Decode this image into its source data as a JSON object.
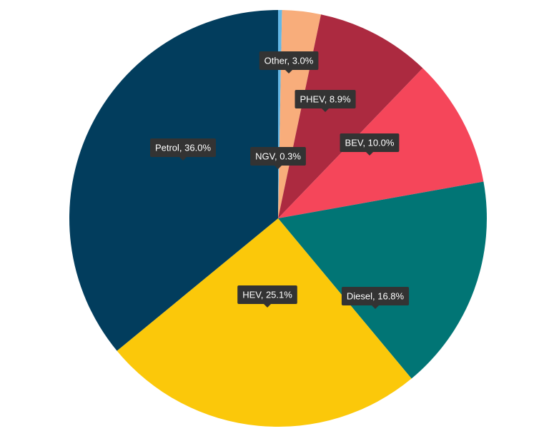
{
  "chart_data": {
    "type": "pie",
    "title": "",
    "start": "12 o'clock",
    "direction": "clockwise",
    "slices": [
      {
        "label": "NGV",
        "value": 0.3,
        "color": "#63b7e6",
        "display": "NGV, 0.3%"
      },
      {
        "label": "Other",
        "value": 3.0,
        "color": "#f8ad7b",
        "display": "Other, 3.0%"
      },
      {
        "label": "PHEV",
        "value": 8.9,
        "color": "#ac2a40",
        "display": "PHEV, 8.9%"
      },
      {
        "label": "BEV",
        "value": 10.0,
        "color": "#f5465a",
        "display": "BEV, 10.0%"
      },
      {
        "label": "Diesel",
        "value": 16.8,
        "color": "#017575",
        "display": "Diesel, 16.8%"
      },
      {
        "label": "HEV",
        "value": 25.1,
        "color": "#fbc80a",
        "display": "HEV, 25.1%"
      },
      {
        "label": "Petrol",
        "value": 36.0,
        "color": "#023d5d",
        "display": "Petrol, 36.0%"
      }
    ],
    "label_style": "dark tooltip callouts",
    "tooltip_color": "#333333"
  }
}
